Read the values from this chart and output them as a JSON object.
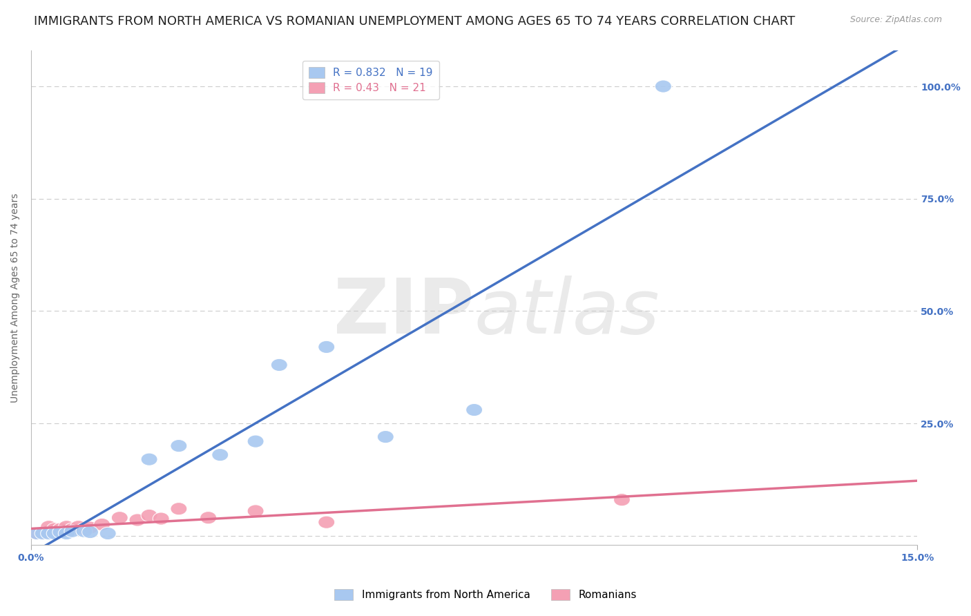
{
  "title": "IMMIGRANTS FROM NORTH AMERICA VS ROMANIAN UNEMPLOYMENT AMONG AGES 65 TO 74 YEARS CORRELATION CHART",
  "source": "Source: ZipAtlas.com",
  "ylabel": "Unemployment Among Ages 65 to 74 years",
  "xlim": [
    0.0,
    0.15
  ],
  "ylim": [
    -0.02,
    1.08
  ],
  "yticks": [
    0.0,
    0.25,
    0.5,
    0.75,
    1.0
  ],
  "yticklabels_right": [
    "",
    "25.0%",
    "50.0%",
    "75.0%",
    "100.0%"
  ],
  "blue_R": 0.832,
  "blue_N": 19,
  "pink_R": 0.43,
  "pink_N": 21,
  "blue_color": "#A8C8F0",
  "pink_color": "#F4A0B4",
  "blue_line_color": "#4472C4",
  "pink_line_color": "#E07090",
  "grid_color": "#CCCCCC",
  "background_color": "#FFFFFF",
  "watermark_color": "#EAEAEA",
  "legend_label_blue": "Immigrants from North America",
  "legend_label_pink": "Romanians",
  "blue_scatter_x": [
    0.001,
    0.002,
    0.003,
    0.004,
    0.005,
    0.006,
    0.007,
    0.009,
    0.01,
    0.013,
    0.02,
    0.025,
    0.032,
    0.038,
    0.042,
    0.05,
    0.06,
    0.075,
    0.107
  ],
  "blue_scatter_y": [
    0.005,
    0.005,
    0.005,
    0.005,
    0.008,
    0.005,
    0.01,
    0.01,
    0.008,
    0.005,
    0.17,
    0.2,
    0.18,
    0.21,
    0.38,
    0.42,
    0.22,
    0.28,
    1.0
  ],
  "pink_scatter_x": [
    0.001,
    0.002,
    0.003,
    0.003,
    0.004,
    0.005,
    0.006,
    0.007,
    0.008,
    0.009,
    0.01,
    0.012,
    0.015,
    0.018,
    0.02,
    0.022,
    0.025,
    0.03,
    0.038,
    0.05,
    0.1
  ],
  "pink_scatter_y": [
    0.005,
    0.005,
    0.01,
    0.02,
    0.015,
    0.015,
    0.02,
    0.015,
    0.02,
    0.015,
    0.018,
    0.025,
    0.04,
    0.035,
    0.045,
    0.038,
    0.06,
    0.04,
    0.055,
    0.03,
    0.08
  ],
  "title_fontsize": 13,
  "axis_fontsize": 10,
  "tick_fontsize": 10,
  "legend_fontsize": 11,
  "rlegend_fontsize": 11
}
